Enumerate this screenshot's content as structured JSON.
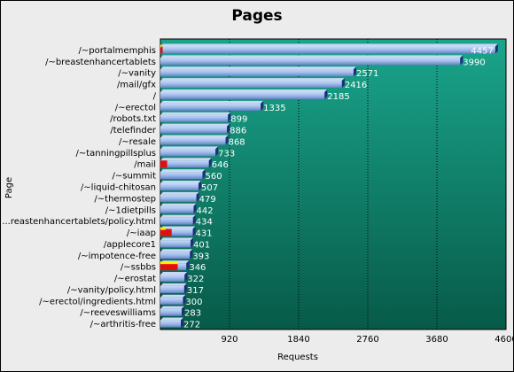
{
  "chart_data": {
    "type": "bar",
    "orientation": "horizontal",
    "title": "Pages",
    "xlabel": "Requests",
    "ylabel": "Page",
    "xlim": [
      0,
      4600
    ],
    "xticks": [
      920,
      1840,
      2760,
      3680,
      4600
    ],
    "grid": true,
    "legend": "none",
    "categories": [
      "/~portalmemphis",
      "/~breastenhancertablets",
      "/~vanity",
      "/mail/gfx",
      "/",
      "/~erectol",
      "/robots.txt",
      "/telefinder",
      "/~resale",
      "/~tanningpillsplus",
      "/mail",
      "/~summit",
      "/~liquid-chitosan",
      "/~thermostep",
      "/~1dietpills",
      "...reastenhancertablets/policy.html",
      "/~iaap",
      "/applecore1",
      "/~impotence-free",
      "/~ssbbs",
      "/~erostat",
      "/~vanity/policy.html",
      "/~erectol/ingredients.html",
      "/~reeveswilliams",
      "/~arthritis-free"
    ],
    "series": [
      {
        "values": [
          4457,
          3990,
          2571,
          2416,
          2185,
          1335,
          899,
          886,
          868,
          733,
          646,
          560,
          507,
          479,
          442,
          434,
          431,
          401,
          393,
          346,
          322,
          317,
          300,
          283,
          272
        ]
      },
      {
        "values": [
          30,
          0,
          0,
          0,
          0,
          0,
          0,
          0,
          0,
          0,
          90,
          0,
          0,
          0,
          0,
          0,
          150,
          0,
          0,
          230,
          0,
          0,
          0,
          0,
          0
        ]
      },
      {
        "values": [
          15,
          0,
          0,
          0,
          0,
          0,
          0,
          0,
          0,
          0,
          0,
          0,
          0,
          0,
          0,
          0,
          70,
          0,
          0,
          230,
          0,
          0,
          0,
          0,
          0
        ]
      }
    ],
    "colors": {
      "plot_top": "#1aa58c",
      "plot_bottom": "#075a48",
      "bar": "#9db9ea",
      "bar_highlight": "#c8d9f6",
      "bar_shadow": "#6383c4",
      "bar_cap": "#1a2f7a",
      "red": "#e01010",
      "yellow": "#ffee00"
    }
  }
}
